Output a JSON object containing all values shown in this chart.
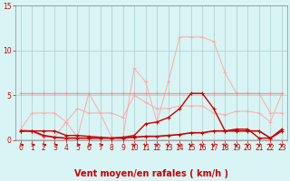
{
  "x": [
    0,
    1,
    2,
    3,
    4,
    5,
    6,
    7,
    8,
    9,
    10,
    11,
    12,
    13,
    14,
    15,
    16,
    17,
    18,
    19,
    20,
    21,
    22,
    23
  ],
  "line_flat": [
    5.2,
    5.2,
    5.2,
    5.2,
    5.2,
    5.2,
    5.2,
    5.2,
    5.2,
    5.2,
    5.2,
    5.2,
    5.2,
    5.2,
    5.2,
    5.2,
    5.2,
    5.2,
    5.2,
    5.2,
    5.2,
    5.2,
    5.2,
    5.2
  ],
  "line_pink_up": [
    1.2,
    3.0,
    3.0,
    3.0,
    2.0,
    3.5,
    3.0,
    3.0,
    3.0,
    2.5,
    5.0,
    4.2,
    3.5,
    3.5,
    3.8,
    3.8,
    3.8,
    3.0,
    2.8,
    3.2,
    3.2,
    3.0,
    2.0,
    5.2
  ],
  "line_pink_spiky": [
    1.2,
    1.0,
    0.3,
    0.3,
    2.0,
    0.3,
    5.2,
    3.0,
    0.3,
    0.3,
    8.0,
    6.5,
    2.0,
    6.5,
    11.5,
    11.5,
    11.5,
    11.0,
    7.5,
    5.2,
    5.2,
    5.2,
    3.0,
    3.0
  ],
  "line_dark_main": [
    1.0,
    1.0,
    1.0,
    1.0,
    0.5,
    0.5,
    0.4,
    0.3,
    0.2,
    0.3,
    0.5,
    1.8,
    2.0,
    2.5,
    3.5,
    5.2,
    5.2,
    3.5,
    1.0,
    1.2,
    1.2,
    0.2,
    0.2,
    1.2
  ],
  "line_dark_low": [
    1.0,
    1.0,
    0.5,
    0.3,
    0.2,
    0.2,
    0.2,
    0.2,
    0.2,
    0.2,
    0.3,
    0.4,
    0.4,
    0.5,
    0.6,
    0.8,
    0.8,
    1.0,
    1.0,
    1.0,
    1.0,
    1.0,
    0.2,
    1.0
  ],
  "color_flat": "#ff8888",
  "color_pink_up": "#ffaaaa",
  "color_pink_spiky": "#ffaaaa",
  "color_dark_main": "#cc0000",
  "color_dark_low": "#cc0000",
  "xlabel": "Vent moyen/en rafales ( km/h )",
  "ylim": [
    0,
    15
  ],
  "xlim": [
    -0.5,
    23.5
  ],
  "yticks": [
    0,
    5,
    10,
    15
  ],
  "xticks": [
    0,
    1,
    2,
    3,
    4,
    5,
    6,
    7,
    8,
    9,
    10,
    11,
    12,
    13,
    14,
    15,
    16,
    17,
    18,
    19,
    20,
    21,
    22,
    23
  ],
  "bg_color": "#d8f4f4",
  "grid_color": "#aacccc",
  "tick_color": "#cc0000",
  "xlabel_color": "#cc0000",
  "label_fontsize": 5.5,
  "xlabel_fontsize": 7,
  "arrow_right_x": [
    0,
    1,
    2,
    3,
    5,
    6,
    7
  ],
  "arrow_down_x": [
    10,
    11,
    12,
    13,
    14,
    15,
    16,
    17,
    18,
    19,
    20,
    21,
    22,
    23
  ]
}
